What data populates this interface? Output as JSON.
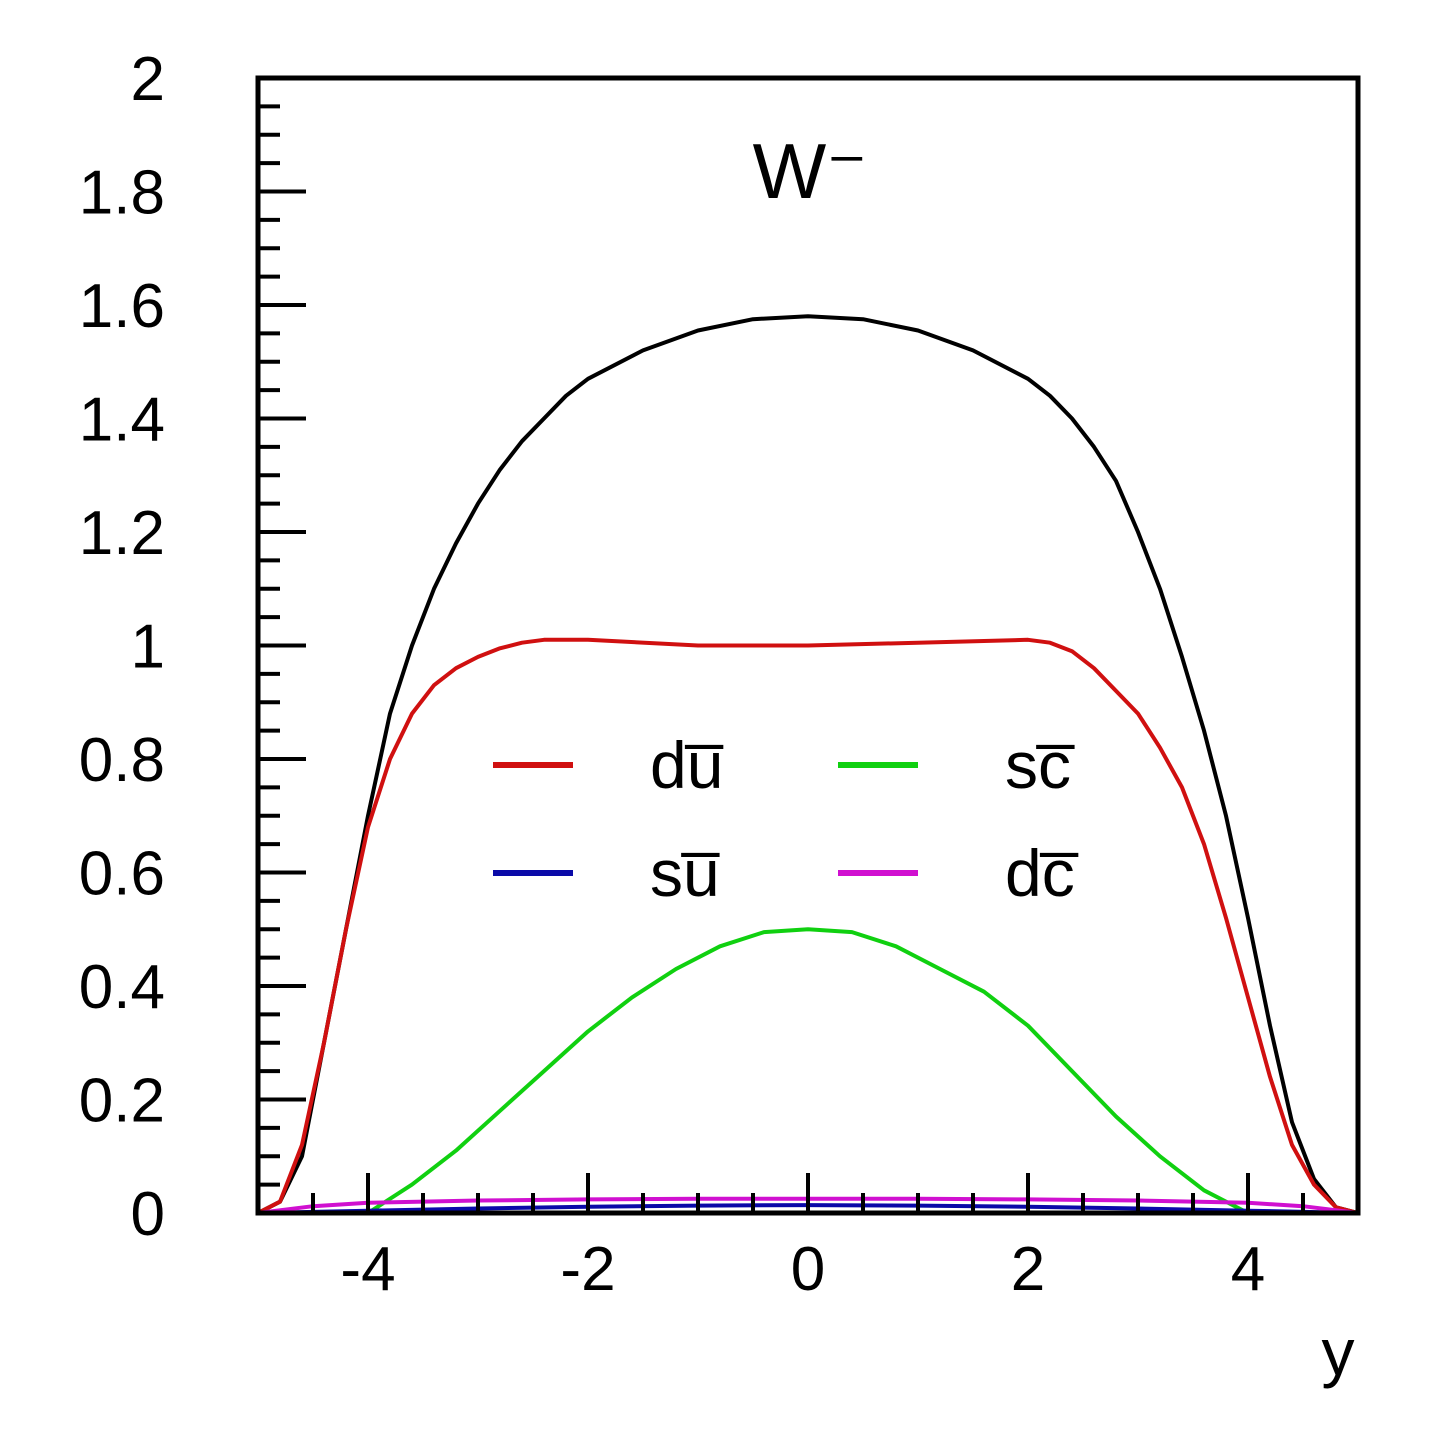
{
  "chart_data": {
    "type": "line",
    "title": "W⁻",
    "xlabel": "y",
    "ylabel": "",
    "xlim": [
      -5,
      5
    ],
    "ylim": [
      0,
      2
    ],
    "x_ticks": [
      -4,
      -2,
      0,
      2,
      4
    ],
    "x_tick_labels": [
      "-4",
      "-2",
      "0",
      "2",
      "4"
    ],
    "y_ticks": [
      0,
      0.2,
      0.4,
      0.6,
      0.8,
      1,
      1.2,
      1.4,
      1.6,
      1.8,
      2
    ],
    "y_tick_labels": [
      "0",
      "0.2",
      "0.4",
      "0.6",
      "0.8",
      "1",
      "1.2",
      "1.4",
      "1.6",
      "1.8",
      "2"
    ],
    "grid": false,
    "legend_placement": "center",
    "series": [
      {
        "name": "",
        "color": "#000000",
        "x": [
          -5,
          -4.8,
          -4.6,
          -4.4,
          -4.2,
          -4,
          -3.8,
          -3.6,
          -3.4,
          -3.2,
          -3,
          -2.8,
          -2.6,
          -2.4,
          -2.2,
          -2,
          -1.5,
          -1,
          -0.5,
          0,
          0.5,
          1,
          1.5,
          2,
          2.2,
          2.4,
          2.6,
          2.8,
          3,
          3.2,
          3.4,
          3.6,
          3.8,
          4,
          4.2,
          4.4,
          4.6,
          4.8,
          5
        ],
        "y": [
          0,
          0.02,
          0.1,
          0.3,
          0.5,
          0.7,
          0.88,
          1.0,
          1.1,
          1.18,
          1.25,
          1.31,
          1.36,
          1.4,
          1.44,
          1.47,
          1.52,
          1.555,
          1.575,
          1.58,
          1.575,
          1.555,
          1.52,
          1.47,
          1.44,
          1.4,
          1.35,
          1.29,
          1.2,
          1.1,
          0.98,
          0.85,
          0.7,
          0.52,
          0.33,
          0.16,
          0.06,
          0.01,
          0
        ]
      },
      {
        "name": "du̅",
        "color": "#d01010",
        "x": [
          -5,
          -4.8,
          -4.6,
          -4.4,
          -4.2,
          -4,
          -3.8,
          -3.6,
          -3.4,
          -3.2,
          -3,
          -2.8,
          -2.6,
          -2.4,
          -2.2,
          -2,
          -1,
          0,
          1,
          2,
          2.2,
          2.4,
          2.6,
          2.8,
          3,
          3.2,
          3.4,
          3.6,
          3.8,
          4,
          4.2,
          4.4,
          4.6,
          4.8,
          5
        ],
        "y": [
          0,
          0.02,
          0.12,
          0.3,
          0.5,
          0.68,
          0.8,
          0.88,
          0.93,
          0.96,
          0.98,
          0.995,
          1.005,
          1.01,
          1.01,
          1.01,
          1.0,
          1.0,
          1.005,
          1.01,
          1.005,
          0.99,
          0.96,
          0.92,
          0.88,
          0.82,
          0.75,
          0.65,
          0.52,
          0.38,
          0.24,
          0.12,
          0.05,
          0.01,
          0
        ]
      },
      {
        "name": "sc̅",
        "color": "#10d010",
        "x": [
          -4,
          -3.6,
          -3.2,
          -2.8,
          -2.4,
          -2,
          -1.6,
          -1.2,
          -0.8,
          -0.4,
          0,
          0.4,
          0.8,
          1.2,
          1.6,
          2,
          2.4,
          2.8,
          3.2,
          3.6,
          4
        ],
        "y": [
          0,
          0.05,
          0.11,
          0.18,
          0.25,
          0.32,
          0.38,
          0.43,
          0.47,
          0.495,
          0.5,
          0.495,
          0.47,
          0.43,
          0.39,
          0.33,
          0.25,
          0.17,
          0.1,
          0.04,
          0
        ]
      },
      {
        "name": "su̅",
        "color": "#0a0aa8",
        "x": [
          -5,
          -4,
          -3,
          -2,
          -1,
          0,
          1,
          2,
          3,
          4,
          5
        ],
        "y": [
          0,
          0.004,
          0.008,
          0.011,
          0.013,
          0.014,
          0.013,
          0.011,
          0.008,
          0.004,
          0
        ]
      },
      {
        "name": "dc̅",
        "color": "#d010d0",
        "x": [
          -5,
          -4.5,
          -4,
          -3,
          -2,
          -1,
          0,
          1,
          2,
          3,
          4,
          4.5,
          5
        ],
        "y": [
          0,
          0.012,
          0.018,
          0.022,
          0.024,
          0.025,
          0.025,
          0.025,
          0.024,
          0.022,
          0.018,
          0.012,
          0
        ]
      }
    ],
    "legend_order": [
      1,
      2,
      3,
      4
    ]
  }
}
